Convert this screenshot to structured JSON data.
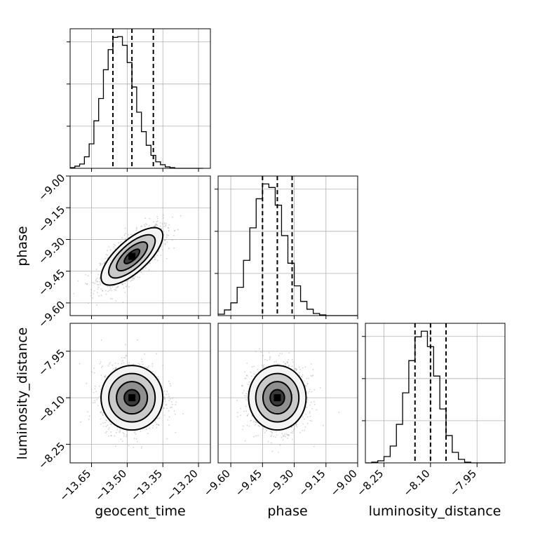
{
  "chart_data": {
    "type": "corner",
    "grid": true,
    "parameters": [
      "geocent_time",
      "phase",
      "luminosity_distance"
    ],
    "ranges": {
      "geocent_time": [
        -13.74,
        -13.15
      ],
      "phase": [
        -9.66,
        -9.0
      ],
      "luminosity_distance": [
        -8.31,
        -7.86
      ]
    },
    "ticks": {
      "geocent_time": {
        "values": [
          -13.65,
          -13.5,
          -13.35,
          -13.2
        ],
        "labels": [
          "−13.65",
          "−13.50",
          "−13.35",
          "−13.20"
        ]
      },
      "phase_x": {
        "values": [
          -9.6,
          -9.45,
          -9.3,
          -9.15,
          -9.0
        ],
        "labels": [
          "−9.60",
          "−9.45",
          "−9.30",
          "−9.15",
          "−9.00"
        ]
      },
      "phase_y": {
        "values": [
          -9.0,
          -9.15,
          -9.3,
          -9.45,
          -9.6
        ],
        "labels": [
          "−9.00",
          "−9.15",
          "−9.30",
          "−9.45",
          "−9.60"
        ]
      },
      "luminosity_distance_x": {
        "values": [
          -8.25,
          -8.1,
          -7.95
        ],
        "labels": [
          "−8.25",
          "−8.10",
          "−7.95"
        ]
      },
      "luminosity_distance_y": {
        "values": [
          -7.95,
          -8.1,
          -8.25
        ],
        "labels": [
          "−7.95",
          "−8.10",
          "−8.25"
        ]
      }
    },
    "quantiles": {
      "geocent_time": [
        -13.56,
        -13.48,
        -13.39
      ],
      "phase": [
        -9.45,
        -9.38,
        -9.31
      ],
      "luminosity_distance": [
        -8.15,
        -8.1,
        -8.05
      ]
    },
    "marginals": [
      {
        "parameter": "geocent_time",
        "edges": [
          -13.74,
          -13.72,
          -13.7,
          -13.68,
          -13.66,
          -13.64,
          -13.62,
          -13.6,
          -13.58,
          -13.56,
          -13.54,
          -13.52,
          -13.5,
          -13.48,
          -13.46,
          -13.44,
          -13.42,
          -13.4,
          -13.38,
          -13.36,
          -13.34,
          -13.32,
          -13.3,
          -13.28,
          -13.26,
          -13.24,
          -13.22,
          -13.2,
          -13.18
        ],
        "counts": [
          1,
          3,
          6,
          16,
          34,
          66,
          97,
          137,
          165,
          182,
          183,
          171,
          147,
          113,
          78,
          51,
          32,
          18,
          9,
          5,
          2,
          1,
          0,
          0,
          0,
          0,
          0,
          0
        ]
      },
      {
        "parameter": "phase",
        "edges": [
          -9.66,
          -9.63,
          -9.6,
          -9.57,
          -9.54,
          -9.51,
          -9.48,
          -9.45,
          -9.42,
          -9.39,
          -9.36,
          -9.33,
          -9.3,
          -9.27,
          -9.24,
          -9.21,
          -9.18,
          -9.15,
          -9.12,
          -9.09,
          -9.06,
          -9.03,
          -9.0
        ],
        "counts": [
          2,
          8,
          18,
          40,
          78,
          124,
          165,
          186,
          181,
          156,
          113,
          74,
          42,
          20,
          9,
          3,
          1,
          0,
          0,
          0,
          0,
          0
        ]
      },
      {
        "parameter": "luminosity_distance",
        "edges": [
          -8.31,
          -8.29,
          -8.27,
          -8.25,
          -8.23,
          -8.21,
          -8.19,
          -8.17,
          -8.15,
          -8.13,
          -8.11,
          -8.09,
          -8.07,
          -8.05,
          -8.03,
          -8.01,
          -7.99,
          -7.97,
          -7.95,
          -7.93,
          -7.91,
          -7.89,
          -7.87
        ],
        "counts": [
          0,
          1,
          3,
          9,
          24,
          55,
          100,
          146,
          180,
          188,
          166,
          124,
          77,
          39,
          15,
          5,
          1,
          0,
          0,
          0,
          0,
          0
        ]
      }
    ],
    "joints": [
      {
        "x": "geocent_time",
        "y": "phase",
        "mean": [
          -13.48,
          -9.38
        ],
        "sd": [
          0.065,
          0.068
        ],
        "correlation": 0.72
      },
      {
        "x": "geocent_time",
        "y": "luminosity_distance",
        "mean": [
          -13.48,
          -8.1
        ],
        "sd": [
          0.065,
          0.052
        ],
        "correlation": 0.0
      },
      {
        "x": "phase",
        "y": "luminosity_distance",
        "mean": [
          -9.38,
          -8.1
        ],
        "sd": [
          0.068,
          0.052
        ],
        "correlation": 0.0
      }
    ],
    "contour_levels_sigma": [
      0.5,
      1.0,
      1.5,
      2.0
    ],
    "colors": {
      "line": "#000000",
      "grid": "#b0b0b0",
      "points": "#9a9a9a"
    }
  }
}
